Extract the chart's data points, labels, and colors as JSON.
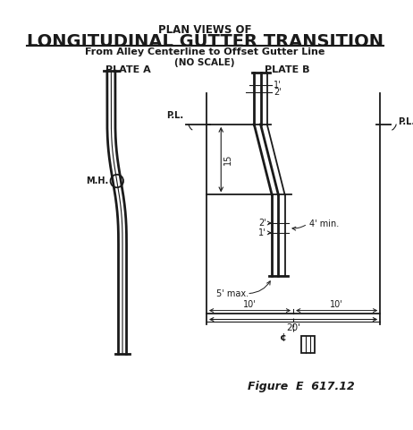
{
  "title_line1": "PLAN VIEWS OF",
  "title_line2": "LONGITUDINAL GUTTER TRANSITION",
  "subtitle1": "From Alley Centerline to Offset Gutter Line",
  "subtitle2": "(NO SCALE)",
  "plate_a_label": "PLATE A",
  "plate_b_label": "PLATE B",
  "figure_label": "Figure  E  617.12",
  "mh_label": "M.H.",
  "pl_label_left": "P.L.",
  "pl_label_right": "P.L.",
  "bg_color": "#ffffff",
  "line_color": "#1a1a1a",
  "label_1ft": "1'",
  "label_2ft_top": "2'",
  "label_15": "15",
  "label_2ft_bot": "2'",
  "label_1ft_bot": "1'",
  "label_4ft_min": "4' min.",
  "label_5ft_max": "5' max.",
  "label_10ft_left": "10'",
  "label_10ft_right": "10'",
  "label_20ft": "20'",
  "centerline_label": "¢"
}
